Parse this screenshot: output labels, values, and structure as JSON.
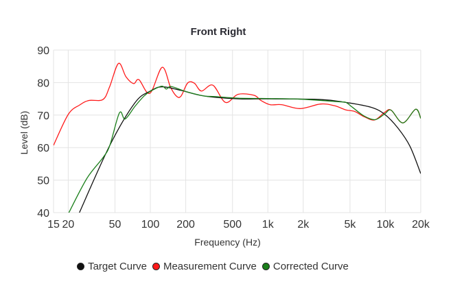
{
  "chart_data": {
    "type": "line",
    "title": "Front Right",
    "xlabel": "Frequency (Hz)",
    "ylabel": "Level (dB)",
    "xscale": "log",
    "xlim": [
      15,
      20000
    ],
    "ylim": [
      40,
      90
    ],
    "grid": true,
    "legend_position": "bottom",
    "x_ticks": [
      {
        "v": 15,
        "label": "15"
      },
      {
        "v": 20,
        "label": "20"
      },
      {
        "v": 50,
        "label": "50"
      },
      {
        "v": 100,
        "label": "100"
      },
      {
        "v": 200,
        "label": "200"
      },
      {
        "v": 500,
        "label": "500"
      },
      {
        "v": 1000,
        "label": "1k"
      },
      {
        "v": 2000,
        "label": "2k"
      },
      {
        "v": 5000,
        "label": "5k"
      },
      {
        "v": 10000,
        "label": "10k"
      },
      {
        "v": 20000,
        "label": "20k"
      }
    ],
    "y_ticks": [
      {
        "v": 40,
        "label": "40"
      },
      {
        "v": 50,
        "label": "50"
      },
      {
        "v": 60,
        "label": "60"
      },
      {
        "v": 70,
        "label": "70"
      },
      {
        "v": 80,
        "label": "80"
      },
      {
        "v": 90,
        "label": "90"
      }
    ],
    "series": [
      {
        "name": "Measurement Curve",
        "color": "#ff1a1a",
        "points": [
          [
            15,
            60.7
          ],
          [
            20,
            70.2
          ],
          [
            25,
            73.1
          ],
          [
            30,
            74.5
          ],
          [
            39.5,
            74.8
          ],
          [
            45,
            78.7
          ],
          [
            53.6,
            85.9
          ],
          [
            62,
            81.8
          ],
          [
            72,
            79.7
          ],
          [
            80,
            80.9
          ],
          [
            99,
            76.7
          ],
          [
            126,
            84.7
          ],
          [
            148,
            78.7
          ],
          [
            166,
            75.9
          ],
          [
            182,
            75.8
          ],
          [
            208,
            79.9
          ],
          [
            237,
            79.8
          ],
          [
            272,
            77.4
          ],
          [
            340,
            79.2
          ],
          [
            436,
            73.9
          ],
          [
            558,
            76.4
          ],
          [
            762,
            76.1
          ],
          [
            873,
            74.5
          ],
          [
            1045,
            73.2
          ],
          [
            1310,
            73.2
          ],
          [
            1880,
            72.0
          ],
          [
            2800,
            73.4
          ],
          [
            3670,
            72.9
          ],
          [
            4610,
            71.6
          ],
          [
            5500,
            71.1
          ],
          [
            6600,
            69.5
          ],
          [
            8100,
            68.5
          ],
          [
            9900,
            70.9
          ],
          [
            11200,
            71.5
          ],
          [
            14100,
            67.6
          ],
          [
            18100,
            71.8
          ],
          [
            20000,
            69.0
          ]
        ]
      },
      {
        "name": "Target Curve",
        "color": "#111111",
        "points": [
          [
            24.9,
            40.0
          ],
          [
            45.2,
            60.7
          ],
          [
            74,
            73.8
          ],
          [
            100,
            77.4
          ],
          [
            126,
            78.7
          ],
          [
            182,
            77.6
          ],
          [
            285,
            75.9
          ],
          [
            558,
            75.0
          ],
          [
            1000,
            75.0
          ],
          [
            2800,
            74.8
          ],
          [
            4610,
            73.9
          ],
          [
            7550,
            72.4
          ],
          [
            9900,
            70.2
          ],
          [
            12800,
            66.0
          ],
          [
            16200,
            60.4
          ],
          [
            20000,
            52.0
          ]
        ]
      },
      {
        "name": "Corrected Curve",
        "color": "#1a7f1a",
        "points": [
          [
            20,
            39.6
          ],
          [
            28.8,
            50.5
          ],
          [
            39.5,
            56.9
          ],
          [
            45.2,
            60.7
          ],
          [
            54.6,
            70.7
          ],
          [
            61,
            68.8
          ],
          [
            74,
            72.7
          ],
          [
            88.6,
            75.9
          ],
          [
            101,
            77.4
          ],
          [
            125,
            78.9
          ],
          [
            137,
            78.0
          ],
          [
            150,
            78.8
          ],
          [
            199,
            77.3
          ],
          [
            285,
            75.9
          ],
          [
            356,
            75.7
          ],
          [
            558,
            75.2
          ],
          [
            1000,
            75.1
          ],
          [
            1880,
            74.9
          ],
          [
            4020,
            74.1
          ],
          [
            4610,
            73.9
          ],
          [
            5250,
            72.4
          ],
          [
            6600,
            69.7
          ],
          [
            8200,
            68.6
          ],
          [
            9900,
            70.4
          ],
          [
            11200,
            71.5
          ],
          [
            14100,
            67.6
          ],
          [
            18100,
            71.8
          ],
          [
            20000,
            69.0
          ]
        ]
      }
    ],
    "legend": [
      {
        "name": "Target Curve",
        "color": "#111111"
      },
      {
        "name": "Measurement Curve",
        "color": "#ff1a1a"
      },
      {
        "name": "Corrected Curve",
        "color": "#1a7f1a"
      }
    ]
  }
}
